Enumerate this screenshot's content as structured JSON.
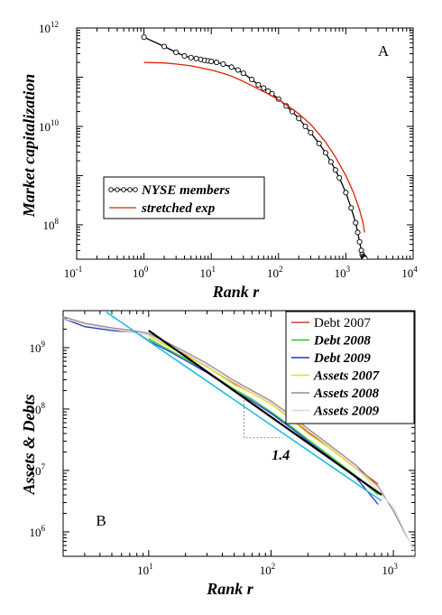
{
  "chart_data": [
    {
      "panel_label": "A",
      "type": "scatter",
      "xlabel": "Rank r",
      "ylabel": "Market capitalization",
      "x_scale": "log",
      "y_scale": "log",
      "xlim": [
        0.1,
        10000
      ],
      "ylim": [
        20000000.0,
        1000000000000.0
      ],
      "x_ticks": [
        {
          "base": "10",
          "exp": "-1",
          "value": 0.1
        },
        {
          "base": "10",
          "exp": "0",
          "value": 1
        },
        {
          "base": "10",
          "exp": "1",
          "value": 10
        },
        {
          "base": "10",
          "exp": "2",
          "value": 100
        },
        {
          "base": "10",
          "exp": "3",
          "value": 1000
        },
        {
          "base": "10",
          "exp": "4",
          "value": 10000
        }
      ],
      "y_ticks": [
        {
          "base": "10",
          "exp": "8",
          "value": 100000000.0
        },
        {
          "base": "10",
          "exp": "10",
          "value": 10000000000.0
        },
        {
          "base": "10",
          "exp": "12",
          "value": 1000000000000.0
        }
      ],
      "legend_position": "bottom-left",
      "series": [
        {
          "name": "NYSE members",
          "color": "#000000",
          "marker": "open-circle",
          "x": [
            1,
            2,
            3,
            4,
            5,
            6,
            7,
            8,
            9,
            10,
            12,
            15,
            20,
            25,
            30,
            40,
            50,
            60,
            70,
            80,
            100,
            130,
            160,
            200,
            250,
            300,
            400,
            500,
            600,
            700,
            800,
            1000,
            1200,
            1400,
            1500,
            1600,
            1700,
            1750,
            1800,
            1850,
            1880,
            1900,
            1920
          ],
          "y": [
            650000000000.0,
            420000000000.0,
            320000000000.0,
            270000000000.0,
            250000000000.0,
            240000000000.0,
            230000000000.0,
            220000000000.0,
            215000000000.0,
            210000000000.0,
            200000000000.0,
            185000000000.0,
            160000000000.0,
            140000000000.0,
            120000000000.0,
            90000000000.0,
            70000000000.0,
            60000000000.0,
            52000000000.0,
            46000000000.0,
            36000000000.0,
            26000000000.0,
            20000000000.0,
            14500000000.0,
            10000000000.0,
            7500000000.0,
            4500000000.0,
            2900000000.0,
            1900000000.0,
            1300000000.0,
            900000000.0,
            450000000.0,
            220000000.0,
            110000000.0,
            70000000.0,
            45000000.0,
            30000000.0,
            25000000.0,
            23000000.0,
            22000000.0,
            21500000.0,
            21000000.0,
            20500000.0
          ]
        },
        {
          "name": "stretched exp",
          "color": "#e02000",
          "marker": "none",
          "x": [
            1,
            2,
            3,
            5,
            7,
            10,
            15,
            20,
            30,
            50,
            70,
            100,
            150,
            200,
            300,
            400,
            500,
            700,
            1000,
            1300,
            1600,
            1800,
            1900
          ],
          "y": [
            200000000000.0,
            195000000000.0,
            185000000000.0,
            170000000000.0,
            155000000000.0,
            140000000000.0,
            120000000000.0,
            105000000000.0,
            82000000000.0,
            58000000000.0,
            46000000000.0,
            35000000000.0,
            24000000000.0,
            18000000000.0,
            11000000000.0,
            7000000000.0,
            4800000000.0,
            2400000000.0,
            1000000000.0,
            450000000.0,
            200000000.0,
            110000000.0,
            70000000.0
          ]
        }
      ]
    },
    {
      "panel_label": "B",
      "type": "line",
      "xlabel": "Rank r",
      "ylabel": "Assets & Debts",
      "x_scale": "log",
      "y_scale": "log",
      "xlim": [
        2,
        1500
      ],
      "ylim": [
        400000.0,
        4000000000.0
      ],
      "x_ticks": [
        {
          "base": "10",
          "exp": "1",
          "value": 10
        },
        {
          "base": "10",
          "exp": "2",
          "value": 100
        },
        {
          "base": "10",
          "exp": "3",
          "value": 1000
        }
      ],
      "y_ticks": [
        {
          "base": "10",
          "exp": "6",
          "value": 1000000.0
        },
        {
          "base": "10",
          "exp": "7",
          "value": 10000000.0
        },
        {
          "base": "10",
          "exp": "8",
          "value": 100000000.0
        },
        {
          "base": "10",
          "exp": "9",
          "value": 1000000000.0
        }
      ],
      "legend_position": "top-right",
      "slope_annotation": "1.4",
      "slope_triangle": {
        "x": [
          60,
          60,
          125
        ],
        "y": [
          140000000.0,
          34000000.0,
          34000000.0
        ]
      },
      "series": [
        {
          "name": "Debt 2007",
          "color": "#d04030",
          "style": "upright",
          "x": [
            10,
            15,
            20,
            30,
            50,
            70,
            100,
            150,
            200,
            300,
            500,
            750
          ],
          "y": [
            1600000000.0,
            1050000000.0,
            780000000.0,
            500000000.0,
            260000000.0,
            185000000.0,
            125000000.0,
            68000000.0,
            42000000.0,
            24000000.0,
            11000000.0,
            6000000.0
          ]
        },
        {
          "name": "Debt 2008",
          "color": "#22cc22",
          "style": "bold-italic",
          "x": [
            10,
            15,
            20,
            30,
            50,
            70,
            100,
            150,
            200,
            300,
            500,
            750
          ],
          "y": [
            1400000000.0,
            900000000.0,
            660000000.0,
            410000000.0,
            210000000.0,
            145000000.0,
            90000000.0,
            50000000.0,
            32000000.0,
            17500000.0,
            8000000.0,
            4000000.0
          ]
        },
        {
          "name": "Debt 2009",
          "color": "#2233cc",
          "style": "bold-italic",
          "x": [
            2,
            3,
            5,
            8,
            10,
            15,
            20,
            30,
            50,
            70,
            100,
            150,
            200,
            300,
            500,
            750
          ],
          "y": [
            3000000000.0,
            2200000000.0,
            1900000000.0,
            1750000000.0,
            1300000000.0,
            850000000.0,
            620000000.0,
            390000000.0,
            200000000.0,
            135000000.0,
            85000000.0,
            47000000.0,
            30000000.0,
            16500000.0,
            7500000.0,
            2800000.0
          ]
        },
        {
          "name": "Assets 2007",
          "color": "#e6e600",
          "style": "bold-italic",
          "x": [
            10,
            15,
            20,
            30,
            50,
            70,
            100,
            150,
            200,
            300,
            500,
            750
          ],
          "y": [
            1550000000.0,
            1000000000.0,
            750000000.0,
            480000000.0,
            250000000.0,
            180000000.0,
            120000000.0,
            65000000.0,
            40000000.0,
            23000000.0,
            10500000.0,
            5500000.0
          ]
        },
        {
          "name": "Assets 2008",
          "color": "#9a8888",
          "style": "bold-italic",
          "x": [
            2,
            3,
            5,
            8,
            10,
            15,
            20,
            30,
            50,
            70,
            100,
            150,
            200,
            300,
            500,
            750,
            1000,
            1300
          ],
          "y": [
            3200000000.0,
            2500000000.0,
            2100000000.0,
            1850000000.0,
            1700000000.0,
            1150000000.0,
            850000000.0,
            550000000.0,
            290000000.0,
            200000000.0,
            135000000.0,
            75000000.0,
            48000000.0,
            26000000.0,
            12000000.0,
            5500000.0,
            2200000.0,
            800000.0
          ]
        },
        {
          "name": "Assets 2009",
          "color": "#e2d4d4",
          "style": "bold-italic",
          "x": [
            2,
            3,
            5,
            10,
            20,
            50,
            100,
            200,
            500,
            1000,
            1500
          ],
          "y": [
            3000000000.0,
            2400000000.0,
            2000000000.0,
            1600000000.0,
            800000000.0,
            270000000.0,
            125000000.0,
            45000000.0,
            11000000.0,
            2500000.0,
            450000.0
          ]
        },
        {
          "name": "",
          "color": "#000000",
          "style": "fit",
          "x": [
            10,
            800
          ],
          "y": [
            1900000000.0,
            4000000.0
          ]
        },
        {
          "name": "",
          "color": "#22bbdd",
          "style": "fit",
          "x": [
            4.5,
            800
          ],
          "y": [
            3800000000.0,
            3200000.0
          ]
        }
      ]
    }
  ]
}
